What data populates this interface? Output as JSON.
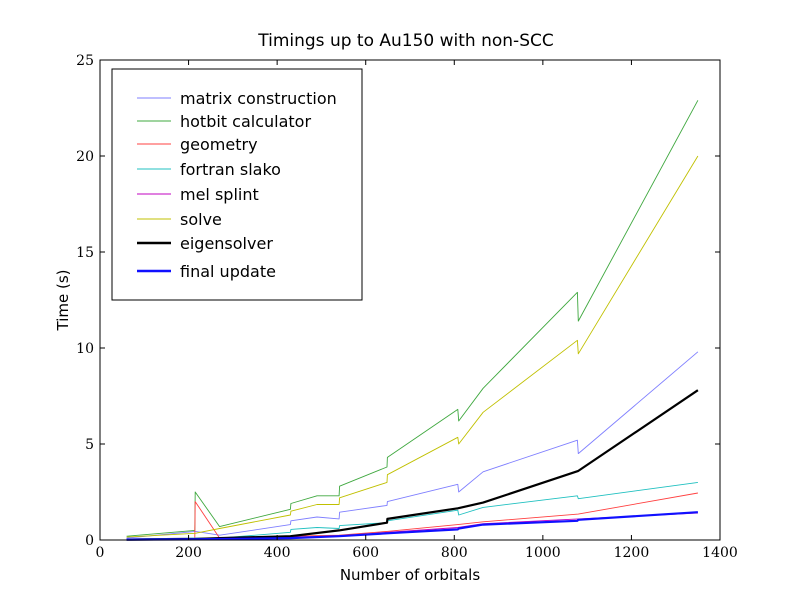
{
  "chart_data": {
    "type": "line",
    "title": "Timings up to Au150 with non-SCC",
    "xlabel": "Number of orbitals",
    "ylabel": "Time (s)",
    "xlim": [
      0,
      1400
    ],
    "ylim": [
      0,
      25
    ],
    "x_ticks": [
      0,
      200,
      400,
      600,
      800,
      1000,
      1200,
      1400
    ],
    "y_ticks": [
      0,
      5,
      10,
      15,
      20,
      25
    ],
    "grid": false,
    "legend_position": "top-left",
    "series": [
      {
        "name": "matrix construction",
        "color": "#7f7fff",
        "points": [
          [
            60,
            0.1
          ],
          [
            215,
            0.45
          ],
          [
            216,
            0.45
          ],
          [
            270,
            0.25
          ],
          [
            430,
            0.8
          ],
          [
            431,
            1.0
          ],
          [
            490,
            1.2
          ],
          [
            540,
            1.1
          ],
          [
            541,
            1.45
          ],
          [
            648,
            1.8
          ],
          [
            649,
            2.0
          ],
          [
            808,
            2.9
          ],
          [
            810,
            2.5
          ],
          [
            865,
            3.55
          ],
          [
            1078,
            5.2
          ],
          [
            1080,
            4.5
          ],
          [
            1350,
            9.8
          ]
        ]
      },
      {
        "name": "hotbit calculator",
        "color": "#3fa83f",
        "points": [
          [
            60,
            0.2
          ],
          [
            214,
            0.5
          ],
          [
            215,
            2.5
          ],
          [
            270,
            0.7
          ],
          [
            430,
            1.6
          ],
          [
            431,
            1.9
          ],
          [
            490,
            2.3
          ],
          [
            540,
            2.3
          ],
          [
            541,
            2.8
          ],
          [
            648,
            3.8
          ],
          [
            649,
            4.3
          ],
          [
            808,
            6.8
          ],
          [
            810,
            6.2
          ],
          [
            865,
            7.9
          ],
          [
            1078,
            12.9
          ],
          [
            1080,
            11.4
          ],
          [
            1350,
            22.9
          ]
        ]
      },
      {
        "name": "geometry",
        "color": "#ff4040",
        "points": [
          [
            60,
            0.05
          ],
          [
            214,
            0.1
          ],
          [
            215,
            2.0
          ],
          [
            270,
            0.1
          ],
          [
            430,
            0.2
          ],
          [
            540,
            0.25
          ],
          [
            648,
            0.45
          ],
          [
            808,
            0.8
          ],
          [
            865,
            0.95
          ],
          [
            1080,
            1.35
          ],
          [
            1350,
            2.45
          ]
        ]
      },
      {
        "name": "fortran slako",
        "color": "#20c0c0",
        "points": [
          [
            60,
            0.05
          ],
          [
            215,
            0.1
          ],
          [
            270,
            0.1
          ],
          [
            430,
            0.4
          ],
          [
            431,
            0.55
          ],
          [
            490,
            0.65
          ],
          [
            540,
            0.6
          ],
          [
            541,
            0.75
          ],
          [
            648,
            0.9
          ],
          [
            649,
            1.0
          ],
          [
            808,
            1.55
          ],
          [
            810,
            1.3
          ],
          [
            865,
            1.7
          ],
          [
            1078,
            2.3
          ],
          [
            1080,
            2.15
          ],
          [
            1350,
            3.0
          ]
        ]
      },
      {
        "name": "mel splint",
        "color": "#c000c0",
        "points": [
          [
            60,
            0.02
          ],
          [
            215,
            0.05
          ],
          [
            270,
            0.05
          ],
          [
            430,
            0.15
          ],
          [
            540,
            0.2
          ],
          [
            648,
            0.4
          ],
          [
            808,
            0.65
          ],
          [
            865,
            0.85
          ],
          [
            1080,
            1.1
          ],
          [
            1350,
            1.4
          ]
        ]
      },
      {
        "name": "solve",
        "color": "#c0c000",
        "points": [
          [
            60,
            0.15
          ],
          [
            215,
            0.35
          ],
          [
            270,
            0.6
          ],
          [
            430,
            1.3
          ],
          [
            431,
            1.5
          ],
          [
            490,
            1.85
          ],
          [
            540,
            1.85
          ],
          [
            541,
            2.2
          ],
          [
            648,
            3.0
          ],
          [
            649,
            3.4
          ],
          [
            808,
            5.35
          ],
          [
            810,
            5.0
          ],
          [
            865,
            6.65
          ],
          [
            1078,
            10.4
          ],
          [
            1080,
            9.7
          ],
          [
            1350,
            20.0
          ]
        ]
      },
      {
        "name": "eigensolver",
        "color": "#000000",
        "points": [
          [
            60,
            0.02
          ],
          [
            215,
            0.05
          ],
          [
            270,
            0.1
          ],
          [
            430,
            0.2
          ],
          [
            540,
            0.5
          ],
          [
            648,
            0.9
          ],
          [
            649,
            1.1
          ],
          [
            808,
            1.65
          ],
          [
            865,
            1.95
          ],
          [
            1080,
            3.6
          ],
          [
            1350,
            7.8
          ]
        ]
      },
      {
        "name": "final update",
        "color": "#1010ff",
        "points": [
          [
            60,
            0.02
          ],
          [
            215,
            0.03
          ],
          [
            270,
            0.05
          ],
          [
            430,
            0.1
          ],
          [
            540,
            0.2
          ],
          [
            648,
            0.35
          ],
          [
            808,
            0.55
          ],
          [
            810,
            0.6
          ],
          [
            865,
            0.8
          ],
          [
            1078,
            1.0
          ],
          [
            1080,
            1.05
          ],
          [
            1350,
            1.45
          ]
        ]
      }
    ]
  }
}
